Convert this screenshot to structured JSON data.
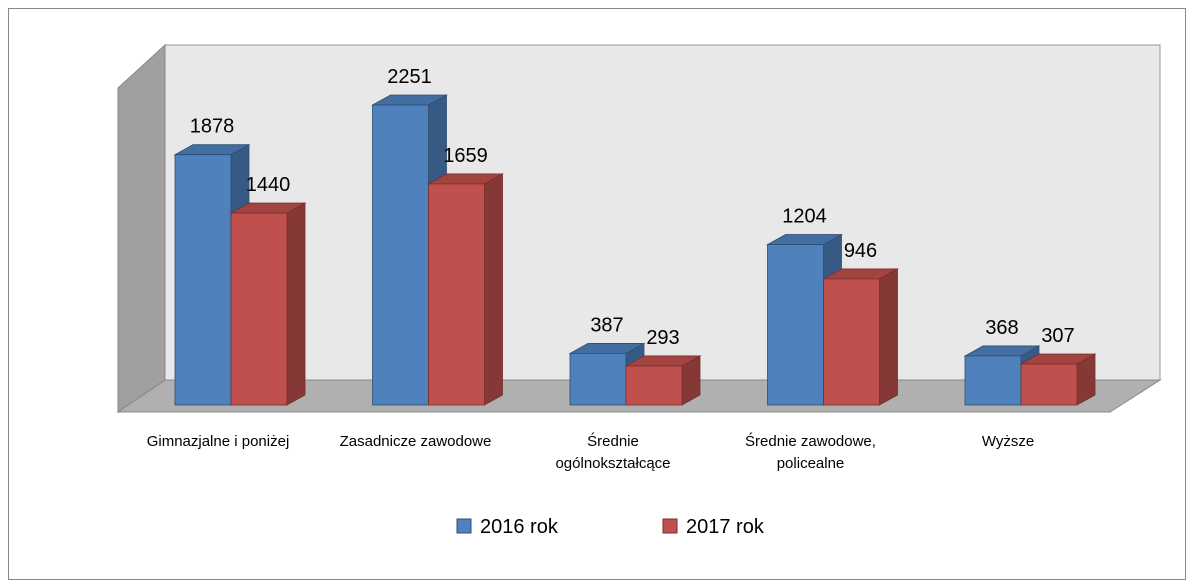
{
  "chart_data": {
    "type": "bar3d",
    "categories": [
      "Gimnazjalne i poniżej",
      "Zasadnicze zawodowe",
      "Średnie ogólnokształcące",
      "Średnie zawodowe, policealne",
      "Wyższe"
    ],
    "series": [
      {
        "name": "2016 rok",
        "color": "#4f81bd",
        "values": [
          1878,
          2251,
          387,
          1204,
          368
        ]
      },
      {
        "name": "2017 rok",
        "color": "#c0504d",
        "values": [
          1440,
          1659,
          293,
          946,
          307
        ]
      }
    ],
    "legend": "bottom"
  }
}
